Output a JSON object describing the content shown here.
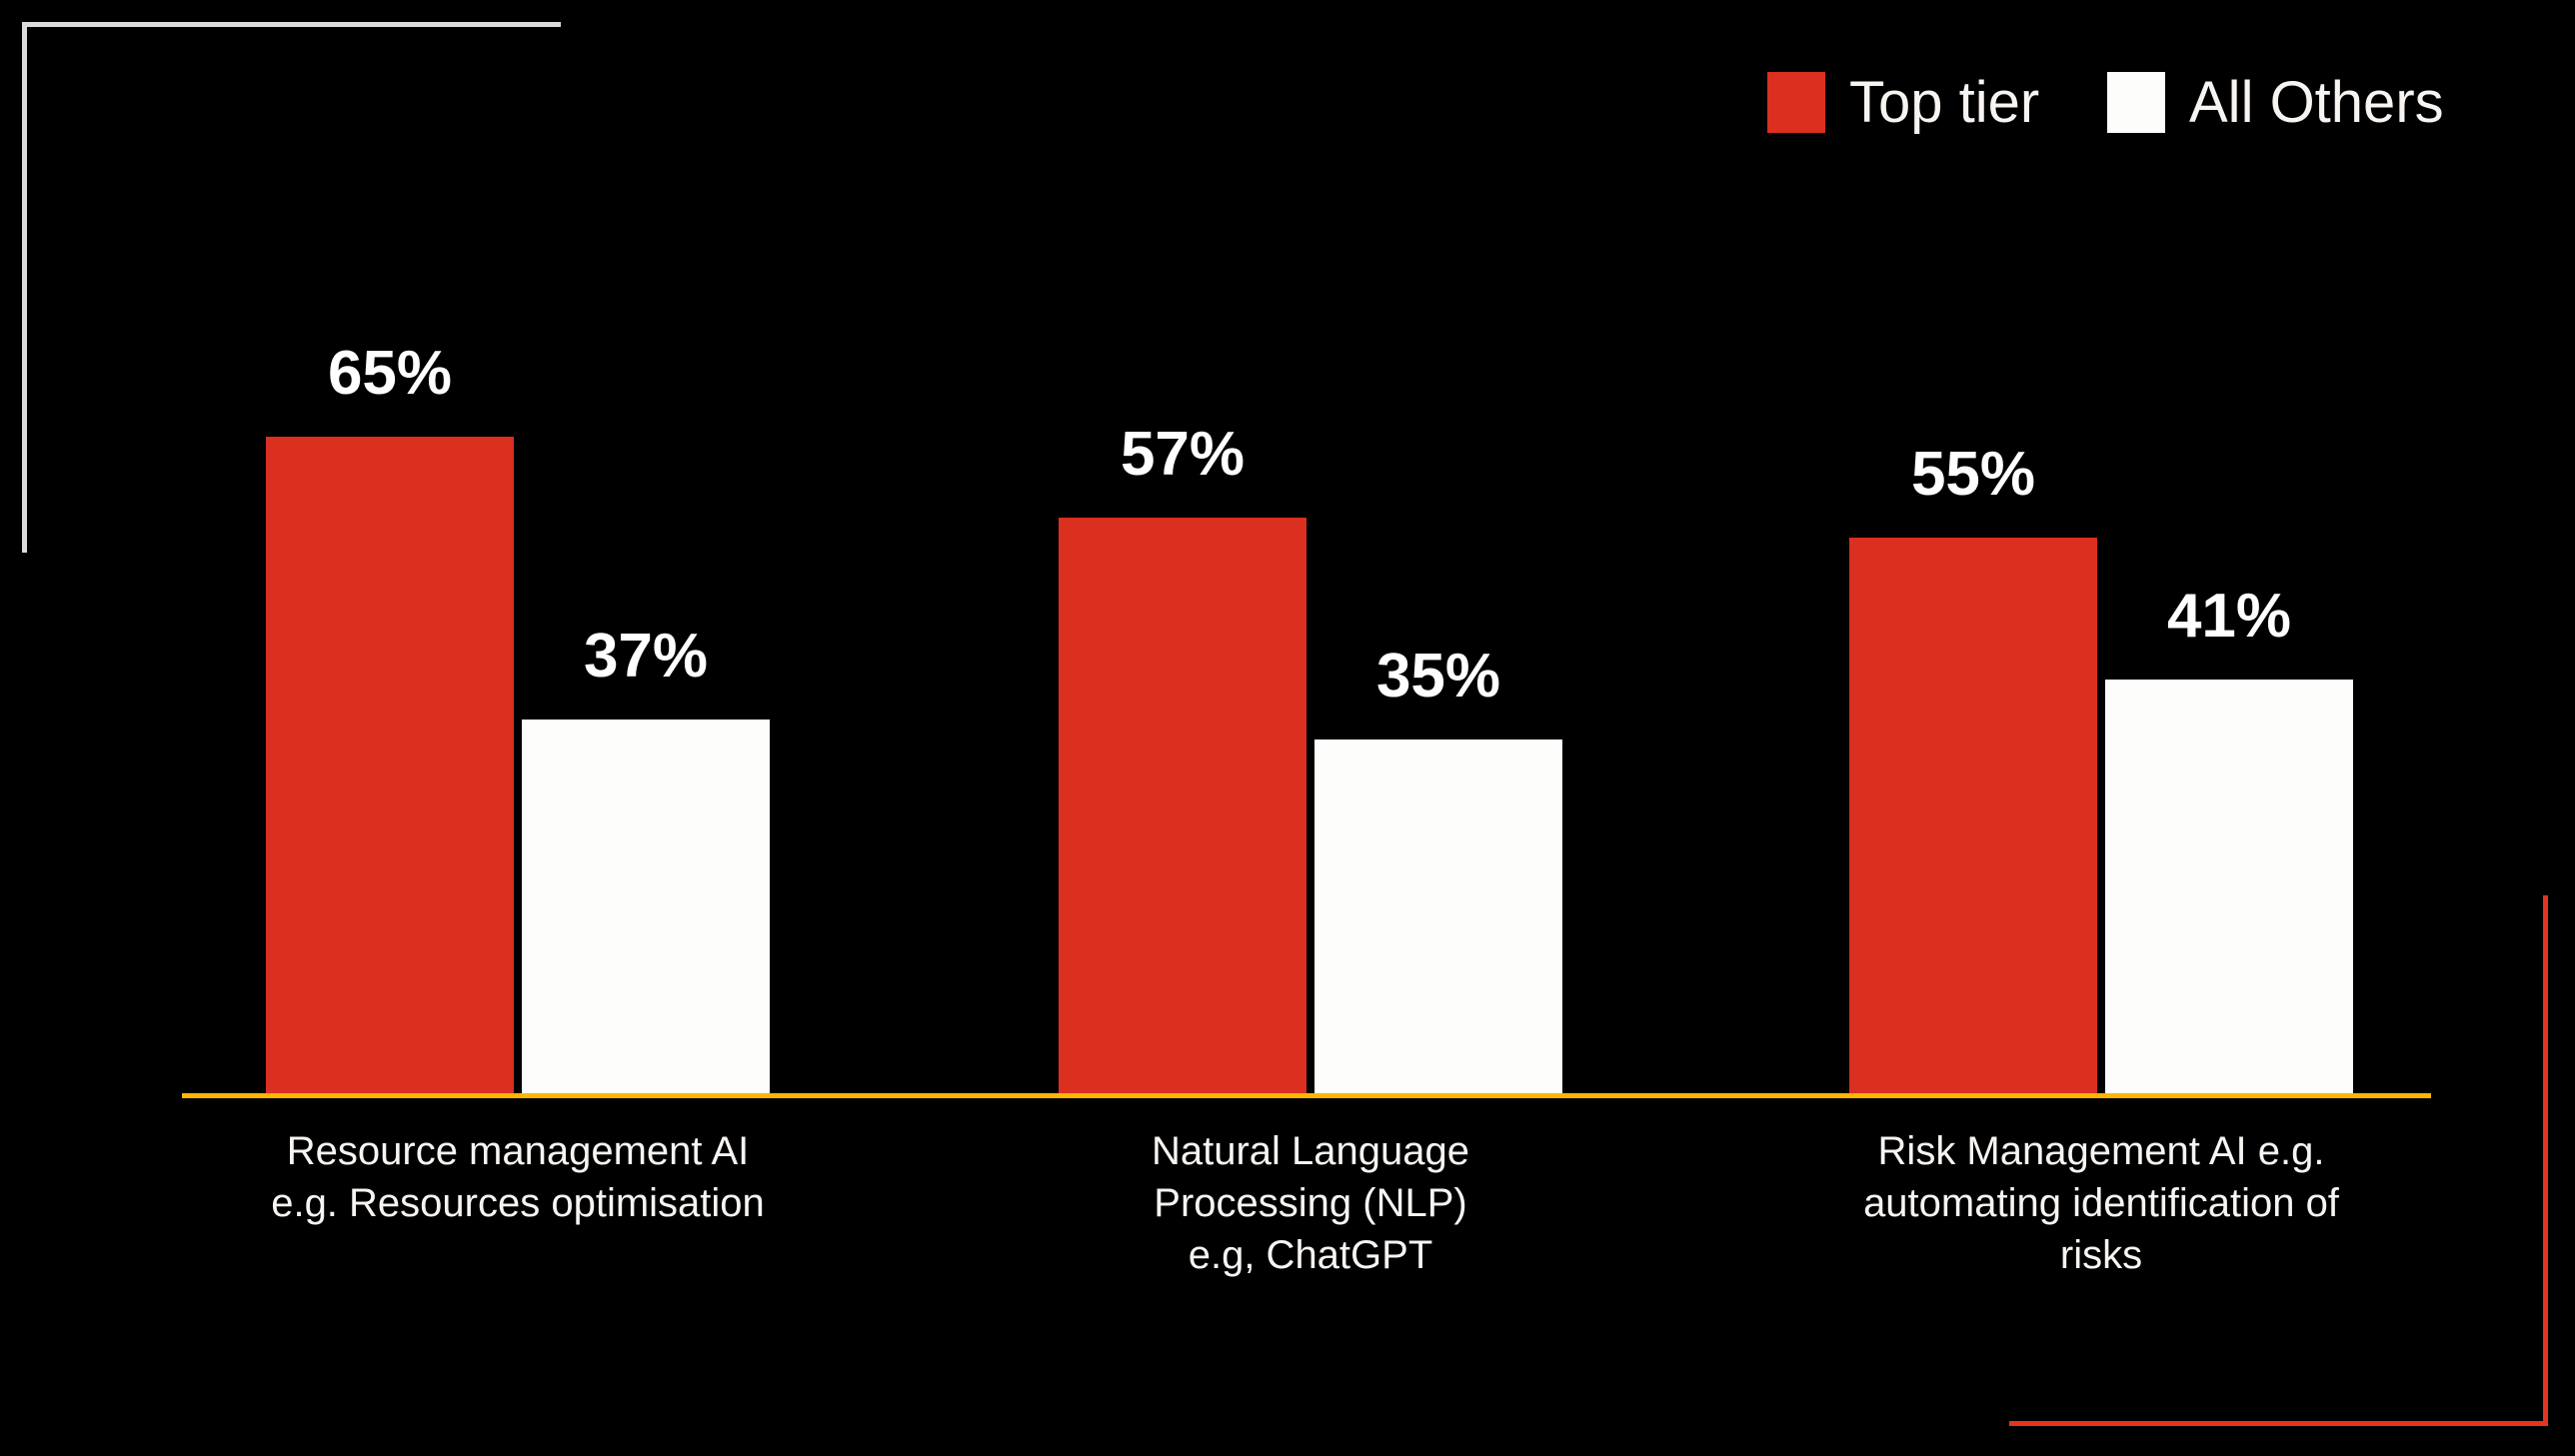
{
  "canvas": {
    "background": "#000000"
  },
  "legend": {
    "items": [
      {
        "label": "Top tier",
        "swatch_color": "#DB2F20"
      },
      {
        "label": "All Others",
        "swatch_color": "#FDFDFC"
      }
    ]
  },
  "chart_data": {
    "type": "bar",
    "title": "",
    "xlabel": "",
    "ylabel": "",
    "categories": [
      "Resource management AI e.g. Resources optimisation",
      "Natural Language Processing (NLP) e.g, ChatGPT",
      "Risk Management AI e.g. automating identification of risks"
    ],
    "category_lines": [
      [
        "Resource management AI",
        "e.g. Resources optimisation"
      ],
      [
        "Natural Language",
        "Processing (NLP)",
        "e.g, ChatGPT"
      ],
      [
        "Risk Management AI e.g.",
        "automating identification of",
        "risks"
      ]
    ],
    "series": [
      {
        "name": "Top tier",
        "color": "#DB2F20",
        "values": [
          65,
          57,
          55
        ]
      },
      {
        "name": "All Others",
        "color": "#FDFDFC",
        "values": [
          37,
          35,
          41
        ]
      }
    ],
    "value_suffix": "%",
    "value_labels": [
      [
        "65%",
        "57%",
        "55%"
      ],
      [
        "37%",
        "35%",
        "41%"
      ]
    ],
    "ylim": [
      0,
      100
    ],
    "grid": false,
    "legend_position": "top-right",
    "axis_line_color": "#FFB600",
    "bar_label_color": "#FFFFFF"
  },
  "decorations": {
    "top_left_bracket_color": "#DBDBDB",
    "bottom_right_bracket_color": "#E5331F"
  }
}
